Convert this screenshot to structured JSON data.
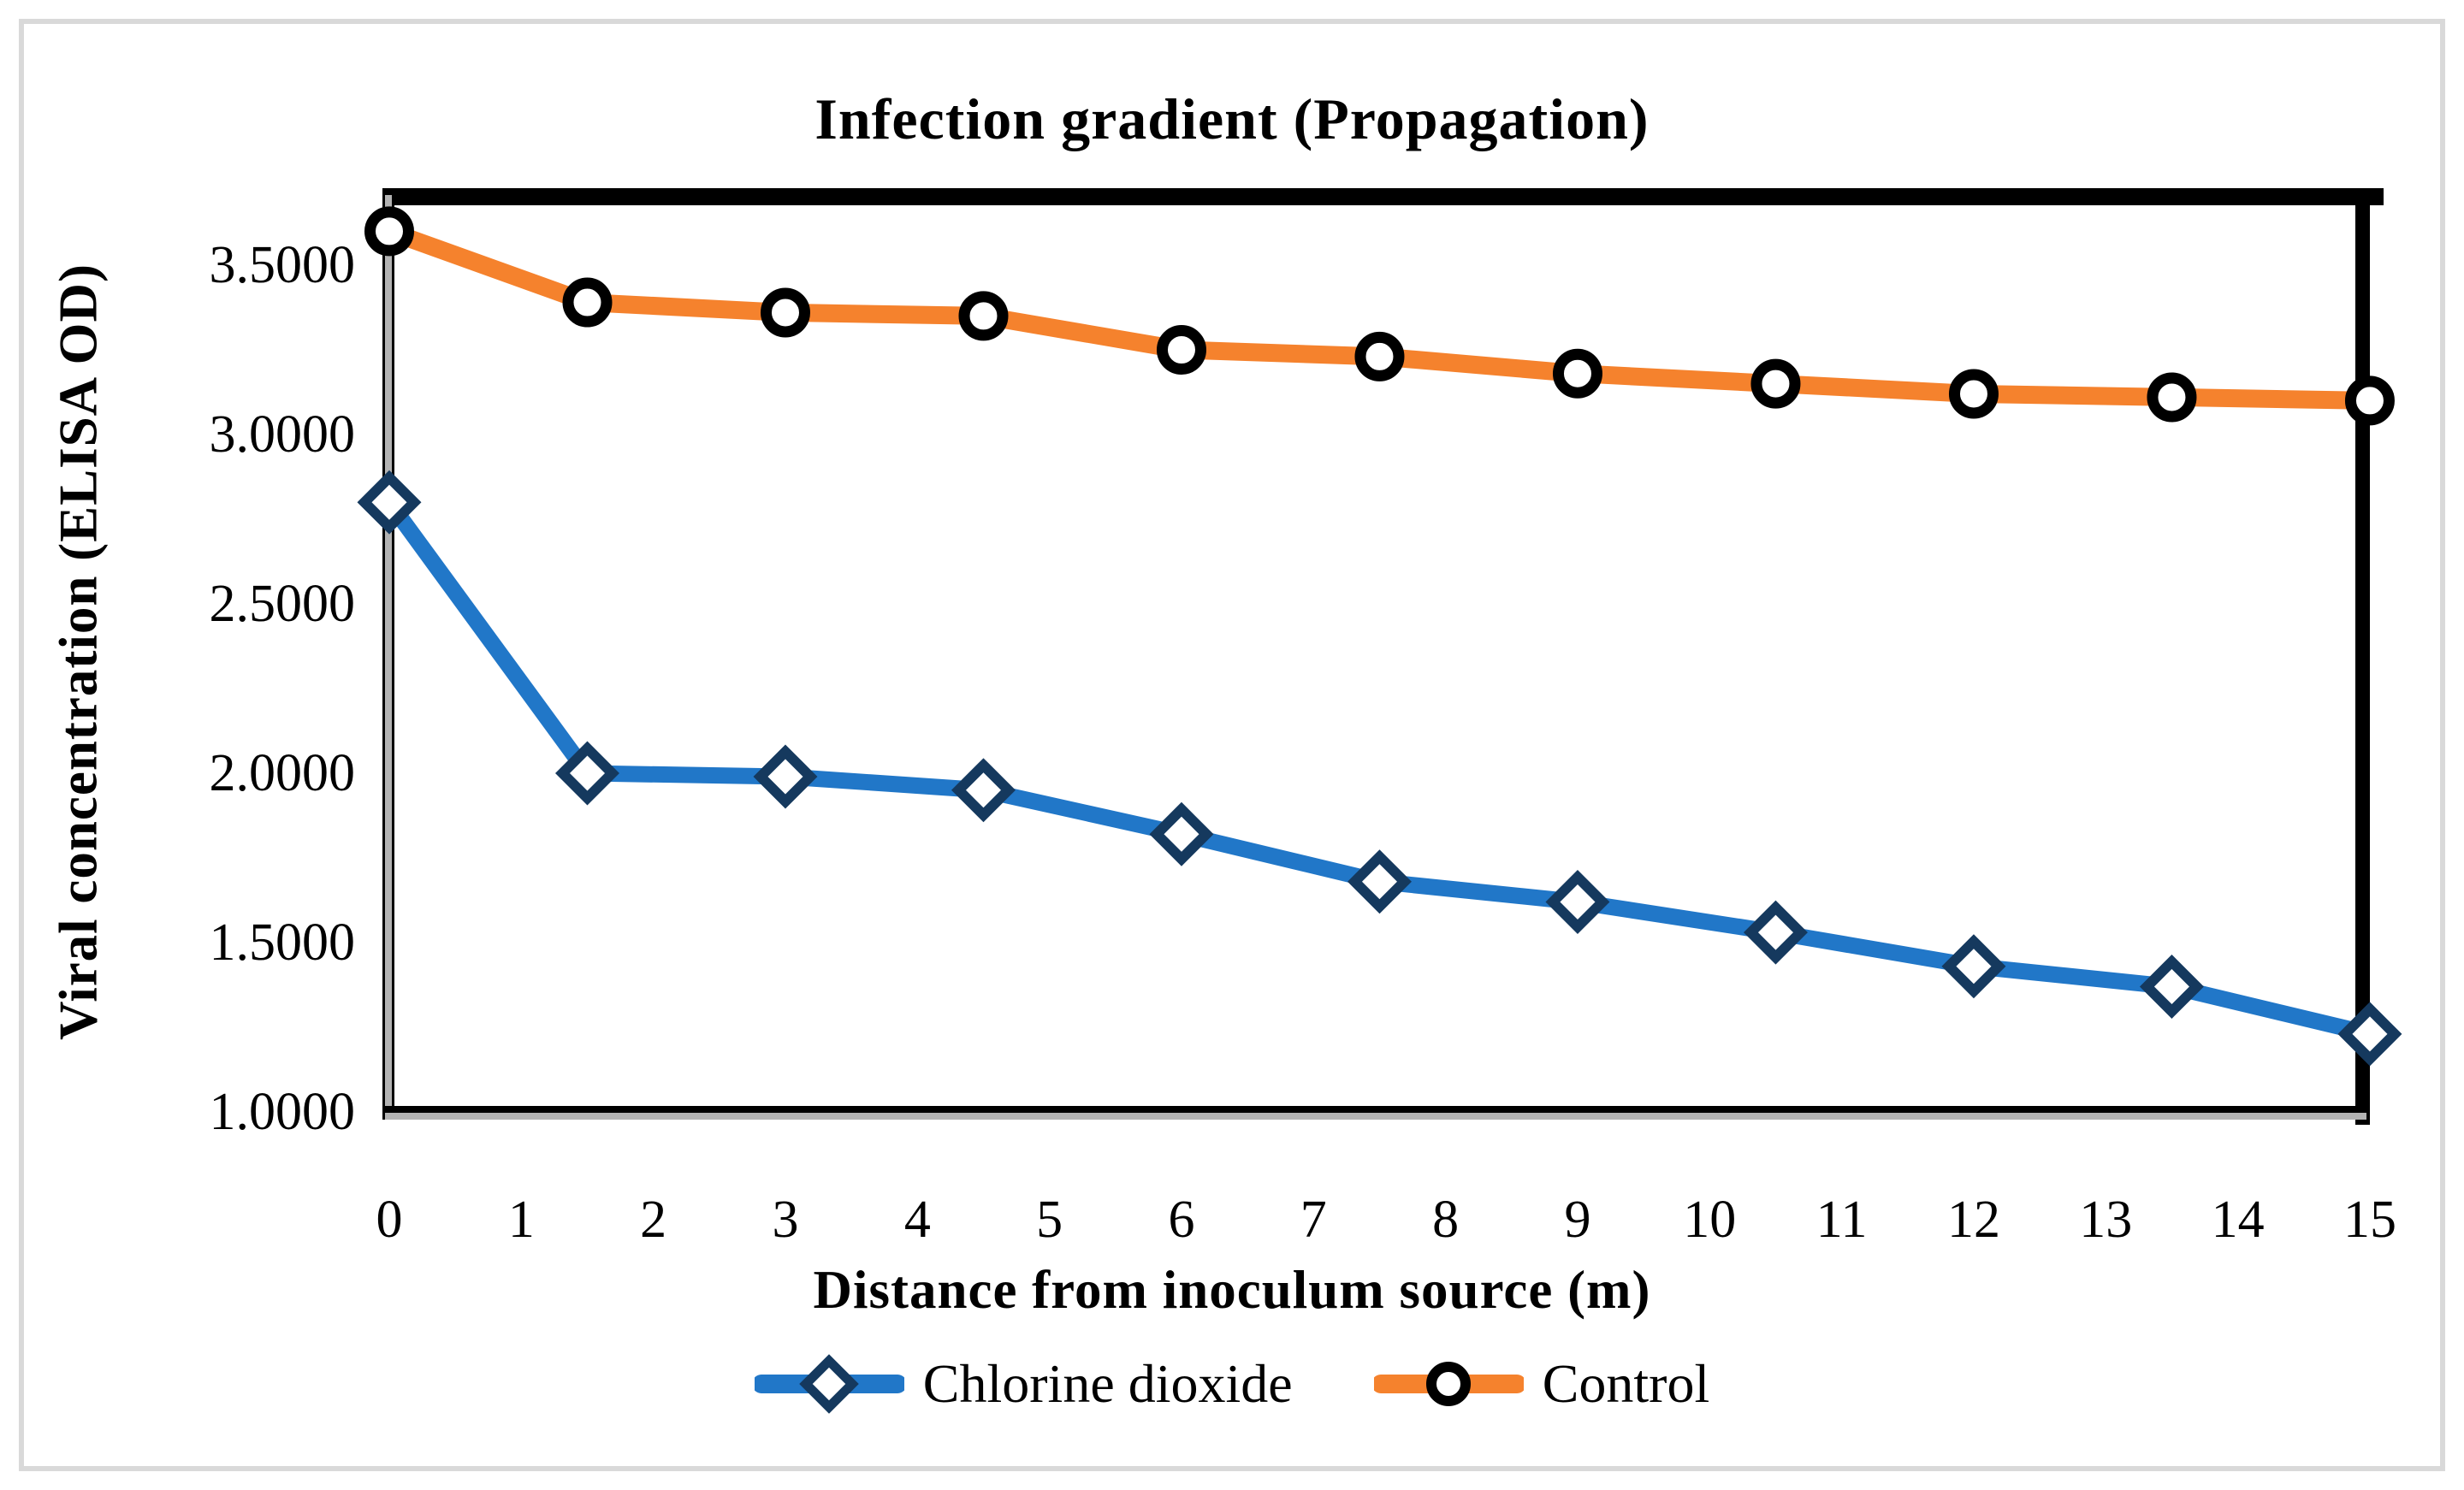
{
  "title": "Infection gradient (Propagation)",
  "y_axis": {
    "title": "Viral concentration (ELISA OD)",
    "tick_labels": [
      "3.5000",
      "3.0000",
      "2.5000",
      "2.0000",
      "1.5000",
      "1.0000"
    ]
  },
  "x_axis": {
    "title": "Distance from inoculum source (m)",
    "tick_labels": [
      "0",
      "1",
      "2",
      "3",
      "4",
      "5",
      "6",
      "7",
      "8",
      "9",
      "10",
      "11",
      "12",
      "13",
      "14",
      "15"
    ]
  },
  "legend": {
    "items": [
      {
        "label": "Chlorine dioxide",
        "marker": "diamond"
      },
      {
        "label": "Control",
        "marker": "circle"
      }
    ]
  },
  "colors": {
    "chlorine_line": "#2177C8",
    "chlorine_marker_stroke": "#15395E",
    "control_line": "#F5822D",
    "control_marker_stroke": "#000000",
    "marker_fill": "#FFFFFF",
    "axis_black": "#000000",
    "axis_gray": "#B3B3B3",
    "frame_gray": "#D9D9D9",
    "text": "#000000"
  },
  "chart_data": {
    "type": "line",
    "title": "Infection gradient (Propagation)",
    "xlabel": "Distance from inoculum source (m)",
    "ylabel": "Viral concentration (ELISA OD)",
    "x": [
      0,
      1.5,
      3,
      4.5,
      6,
      7.5,
      9,
      10.5,
      12,
      13.5,
      15
    ],
    "series": [
      {
        "name": "Chlorine dioxide",
        "marker": "diamond",
        "color": "#2177C8",
        "marker_stroke": "#15395E",
        "values": [
          2.8,
          2.0,
          1.99,
          1.95,
          1.82,
          1.68,
          1.62,
          1.53,
          1.43,
          1.37,
          1.23
        ]
      },
      {
        "name": "Control",
        "marker": "circle",
        "color": "#F5822D",
        "marker_stroke": "#000000",
        "values": [
          3.6,
          3.39,
          3.36,
          3.35,
          3.25,
          3.23,
          3.18,
          3.15,
          3.12,
          3.11,
          3.1
        ]
      }
    ],
    "xlim": [
      0,
      15
    ],
    "ylim": [
      1.0,
      3.7
    ],
    "y_tick_step": 0.5,
    "grid": false,
    "legend_position": "bottom"
  }
}
